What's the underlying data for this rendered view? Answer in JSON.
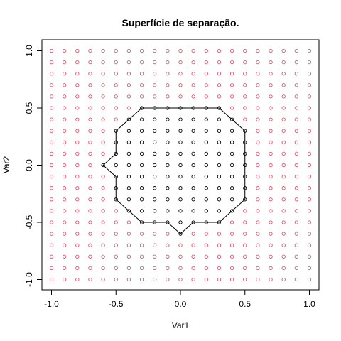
{
  "chart_data": {
    "type": "scatter",
    "title": "Superfície de separação.",
    "xlabel": "Var1",
    "ylabel": "Var2",
    "xlim": [
      -1.0,
      1.0
    ],
    "ylim": [
      -1.0,
      1.0
    ],
    "xticks": [
      "-1.0",
      "-0.5",
      "0.0",
      "0.5",
      "1.0"
    ],
    "yticks": [
      "-1.0",
      "-0.5",
      "0.0",
      "0.5",
      "1.0"
    ],
    "grid": false,
    "point_grid": {
      "start": -1.0,
      "step": 0.1,
      "count": 21,
      "colors": {
        "inside": "#000000",
        "outside": "#DF536B"
      }
    },
    "boundary": [
      [
        -0.3,
        0.5
      ],
      [
        -0.2,
        0.5
      ],
      [
        -0.1,
        0.5
      ],
      [
        0.0,
        0.5
      ],
      [
        0.1,
        0.5
      ],
      [
        0.2,
        0.5
      ],
      [
        0.3,
        0.5
      ],
      [
        0.4,
        0.4
      ],
      [
        0.5,
        0.3
      ],
      [
        0.5,
        0.2
      ],
      [
        0.5,
        0.1
      ],
      [
        0.5,
        0.0
      ],
      [
        0.5,
        -0.1
      ],
      [
        0.5,
        -0.2
      ],
      [
        0.5,
        -0.3
      ],
      [
        0.4,
        -0.4
      ],
      [
        0.3,
        -0.5
      ],
      [
        0.2,
        -0.5
      ],
      [
        0.1,
        -0.5
      ],
      [
        0.0,
        -0.6
      ],
      [
        -0.1,
        -0.5
      ],
      [
        -0.2,
        -0.5
      ],
      [
        -0.3,
        -0.5
      ],
      [
        -0.4,
        -0.4
      ],
      [
        -0.5,
        -0.3
      ],
      [
        -0.5,
        -0.2
      ],
      [
        -0.5,
        -0.1
      ],
      [
        -0.6,
        0.0
      ],
      [
        -0.5,
        0.1
      ],
      [
        -0.5,
        0.2
      ],
      [
        -0.5,
        0.3
      ],
      [
        -0.4,
        0.4
      ]
    ]
  }
}
